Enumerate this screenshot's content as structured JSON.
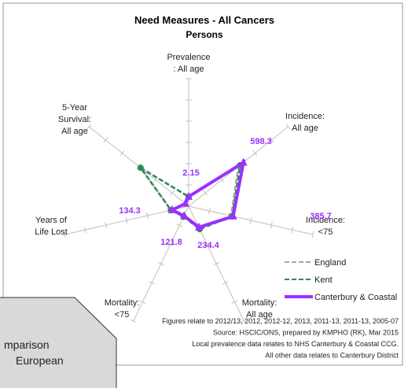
{
  "chart_data": {
    "type": "radar",
    "title": "Need Measures - All Cancers",
    "subtitle": "Persons",
    "categories": [
      [
        "Prevalence",
        ": All age"
      ],
      [
        "Incidence:",
        "All age"
      ],
      [
        "Incidence:",
        "<75"
      ],
      [
        "Mortality:",
        "All age"
      ],
      [
        "Mortality:",
        "<75"
      ],
      [
        "Years of",
        "Life Lost"
      ],
      [
        "5-Year",
        "Survival:",
        "All age"
      ]
    ],
    "rlim": [
      0,
      6
    ],
    "rticks": [
      1,
      2,
      3,
      4,
      5,
      6
    ],
    "series": [
      {
        "name": "England",
        "color": "#a6a6a6",
        "dash": "6,3",
        "marker": "square",
        "values": [
          0.45,
          3.0,
          2.05,
          1.15,
          0.55,
          0.85,
          2.85
        ]
      },
      {
        "name": "Kent",
        "color": "#2e8b57",
        "dash": "6,3",
        "marker": "circle",
        "values": [
          0.45,
          3.1,
          2.1,
          1.2,
          0.55,
          0.85,
          2.9
        ]
      },
      {
        "name": "Canterbury & Coastal",
        "color": "#9b30ff",
        "dash": "",
        "marker": "triangle",
        "values": [
          0.45,
          3.3,
          2.15,
          1.1,
          0.5,
          0.8,
          0.2
        ]
      }
    ],
    "annotations": [
      "2.15",
      "598.3",
      "385.7",
      "234.4",
      "121.8",
      "134.3"
    ],
    "footnotes": [
      "Figures relate to 2012/13, 2012, 2012-12, 2013, 2011-13, 2011-13, 2005-07",
      "Source:  HSCIC/ONS, prepared by KMPHO (RK), Mar 2015",
      "Local prevalence data relates to NHS Canterbury & Coastal CCG.",
      "All other data relates to Canterbury District"
    ]
  },
  "callout": [
    "mparison",
    "European"
  ]
}
